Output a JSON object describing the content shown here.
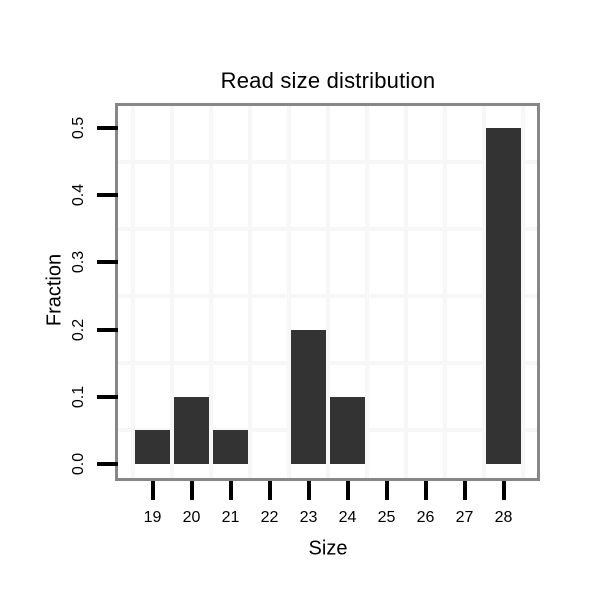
{
  "chart_data": {
    "type": "bar",
    "title": "Read size distribution",
    "xlabel": "Size",
    "ylabel": "Fraction",
    "categories": [
      "19",
      "20",
      "21",
      "22",
      "23",
      "24",
      "25",
      "26",
      "27",
      "28"
    ],
    "values": [
      0.05,
      0.1,
      0.05,
      0,
      0.2,
      0.1,
      0,
      0,
      0,
      0.5
    ],
    "y_tick_values": [
      0.0,
      0.1,
      0.2,
      0.3,
      0.4,
      0.5
    ],
    "y_tick_labels": [
      "0.0",
      "0.1",
      "0.2",
      "0.3",
      "0.4",
      "0.5"
    ],
    "ylim": [
      0,
      0.5
    ],
    "legend": "none",
    "grid": "minor gridlines only, between ticks",
    "colors": {
      "bar_fill": "#333333",
      "panel_border": "#878787",
      "gridline": "#f7f7f7",
      "tick": "#000000",
      "text": "#000000",
      "background": "#ffffff"
    }
  }
}
